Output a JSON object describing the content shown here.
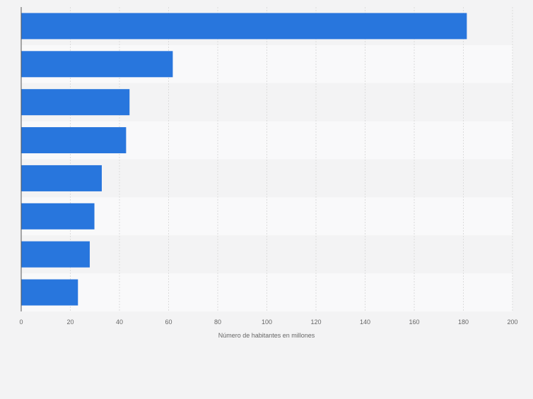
{
  "chart_data": {
    "type": "bar",
    "orientation": "horizontal",
    "categories": [
      "",
      "",
      "",
      "",
      "",
      "",
      "",
      ""
    ],
    "values": [
      181.4,
      61.7,
      44.1,
      42.7,
      32.8,
      29.8,
      27.9,
      23.1
    ],
    "xlabel": "Número de habitantes en millones",
    "xlim": [
      0,
      200
    ],
    "xticks": [
      0,
      20,
      40,
      60,
      80,
      100,
      120,
      140,
      160,
      180,
      200
    ],
    "grid": true,
    "legend": "none",
    "colors": {
      "bar": "#2876dd",
      "band_light": "#f9f9fa",
      "band_dark": "#f3f3f4",
      "grid": "#dcdcdc",
      "axis": "#555555",
      "tick_text": "#666666"
    }
  }
}
